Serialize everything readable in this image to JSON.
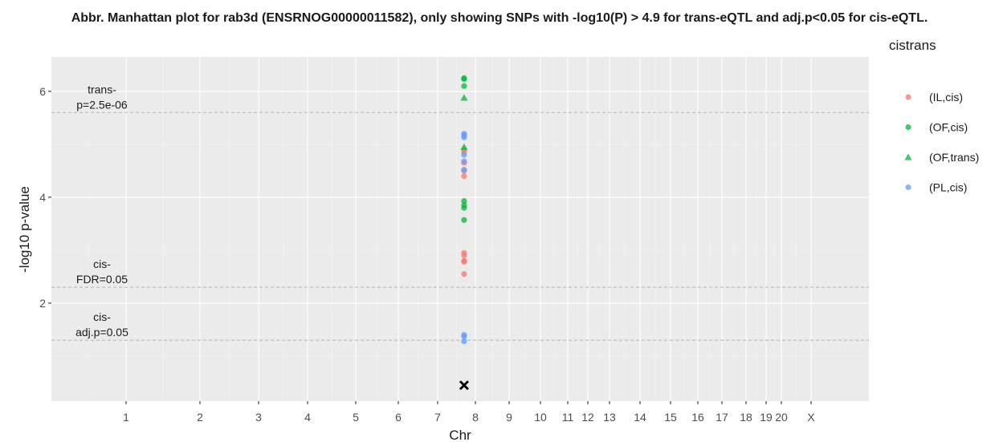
{
  "chart_data": {
    "type": "scatter",
    "title": "Abbr. Manhattan plot for rab3d (ENSRNOG00000011582), only showing SNPs with -log10(P) > 4.9 for trans-eQTL and adj.p<0.05 for cis-eQTL.",
    "xlabel": "Chr",
    "ylabel": "-log10 p-value",
    "ylim": [
      0.15,
      6.65
    ],
    "y_ticks": [
      2,
      4,
      6
    ],
    "x_ticks": [
      {
        "label": "1",
        "pos": 1
      },
      {
        "label": "2",
        "pos": 2
      },
      {
        "label": "3",
        "pos": 3
      },
      {
        "label": "4",
        "pos": 4
      },
      {
        "label": "5",
        "pos": 5
      },
      {
        "label": "6",
        "pos": 6
      },
      {
        "label": "7",
        "pos": 7
      },
      {
        "label": "8",
        "pos": 8
      },
      {
        "label": "9",
        "pos": 9
      },
      {
        "label": "10",
        "pos": 10
      },
      {
        "label": "11",
        "pos": 11
      },
      {
        "label": "12",
        "pos": 12
      },
      {
        "label": "13",
        "pos": 13
      },
      {
        "label": "14",
        "pos": 14
      },
      {
        "label": "15",
        "pos": 15
      },
      {
        "label": "16",
        "pos": 16
      },
      {
        "label": "17",
        "pos": 17
      },
      {
        "label": "18",
        "pos": 18
      },
      {
        "label": "19",
        "pos": 19
      },
      {
        "label": "20",
        "pos": 20
      },
      {
        "label": "X",
        "pos": 21
      }
    ],
    "grid": true,
    "legend": {
      "title": "cistrans",
      "placement": "right",
      "entries": [
        {
          "name": "(IL,cis)",
          "color": "#F8766D",
          "shape": "circle"
        },
        {
          "name": "(OF,cis)",
          "color": "#00BA38",
          "shape": "circle"
        },
        {
          "name": "(OF,trans)",
          "color": "#00BA38",
          "shape": "triangle"
        },
        {
          "name": "(PL,cis)",
          "color": "#619CFF",
          "shape": "circle"
        }
      ]
    },
    "thresholds": [
      {
        "label_lines": [
          "trans-",
          "p=2.5e-06"
        ],
        "y": 5.6
      },
      {
        "label_lines": [
          "cis-",
          "FDR=0.05"
        ],
        "y": 2.3
      },
      {
        "label_lines": [
          "cis-",
          "adj.p=0.05"
        ],
        "y": 1.3
      }
    ],
    "series": [
      {
        "name": "(IL,cis)",
        "color": "#F8766D",
        "shape": "circle",
        "x": [
          7.7,
          7.7,
          7.7,
          7.7,
          7.7,
          7.7,
          7.7,
          7.7,
          7.7,
          7.7
        ],
        "y": [
          4.9,
          4.85,
          4.65,
          4.4,
          4.5,
          2.95,
          2.9,
          2.8,
          2.78,
          2.55
        ]
      },
      {
        "name": "(OF,cis)",
        "color": "#00BA38",
        "shape": "circle",
        "x": [
          7.7,
          7.7,
          7.7,
          7.7,
          7.7,
          7.7,
          7.7
        ],
        "y": [
          6.25,
          6.23,
          6.1,
          3.93,
          3.85,
          3.8,
          3.57
        ]
      },
      {
        "name": "(OF,trans)",
        "color": "#00BA38",
        "shape": "triangle",
        "x": [
          7.7,
          7.7
        ],
        "y": [
          5.88,
          4.95
        ]
      },
      {
        "name": "(PL,cis)",
        "color": "#619CFF",
        "shape": "circle",
        "x": [
          7.7,
          7.7,
          7.7,
          7.7,
          7.7,
          7.7,
          7.7,
          7.7,
          7.7
        ],
        "y": [
          5.2,
          5.17,
          5.13,
          4.8,
          4.68,
          4.52,
          1.4,
          1.37,
          1.28
        ]
      }
    ],
    "gene_marker": {
      "shape": "x",
      "color": "#000000",
      "x": 7.7,
      "y": 0.45
    }
  }
}
